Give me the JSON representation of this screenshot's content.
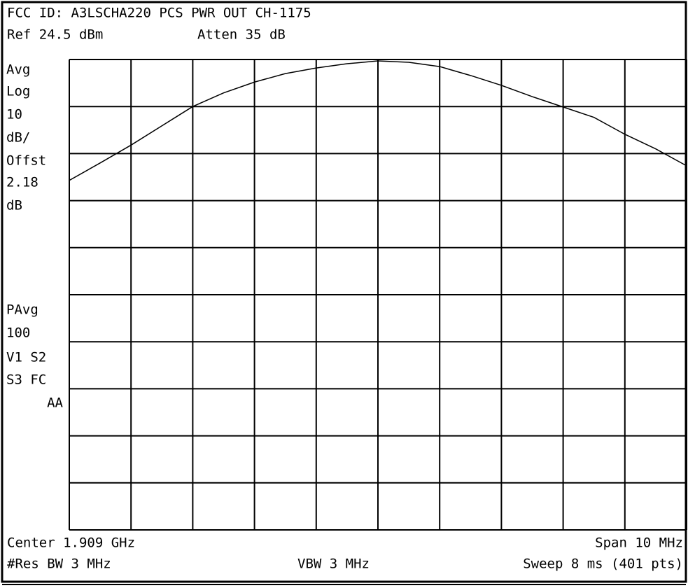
{
  "chart_data": {
    "type": "line",
    "title": "FCC ID: A3LSCHA220 PCS PWR OUT CH-1175",
    "ref_level": "Ref 24.5 dBm",
    "attenuation": "Atten 35 dB",
    "side_labels": [
      "Avg",
      "Log",
      "10",
      "dB/",
      "Offst",
      "2.18",
      "dB",
      "PAvg",
      "100",
      "V1  S2",
      "S3 FC",
      "AA"
    ],
    "center": "Center 1.909 GHz",
    "span": "Span 10 MHz",
    "res_bw": "#Res BW 3 MHz",
    "vbw": "VBW 3 MHz",
    "sweep": "Sweep 8 ms (401 pts)",
    "x": [
      1904,
      1904.5,
      1905,
      1905.5,
      1906,
      1906.5,
      1907,
      1907.5,
      1908,
      1908.5,
      1909,
      1909.5,
      1910,
      1910.5,
      1911,
      1911.5,
      1912,
      1912.5,
      1913,
      1913.5,
      1914
    ],
    "values": [
      -1.2,
      2.5,
      6.3,
      10.4,
      14.5,
      17.4,
      19.7,
      21.5,
      22.7,
      23.6,
      24.2,
      23.9,
      23.0,
      21.1,
      19.0,
      16.6,
      14.4,
      12.2,
      8.6,
      5.5,
      1.9
    ],
    "color": "#000000",
    "xlim": [
      1904,
      1914
    ],
    "ylim": [
      -75.5,
      24.5
    ],
    "grid": true
  }
}
